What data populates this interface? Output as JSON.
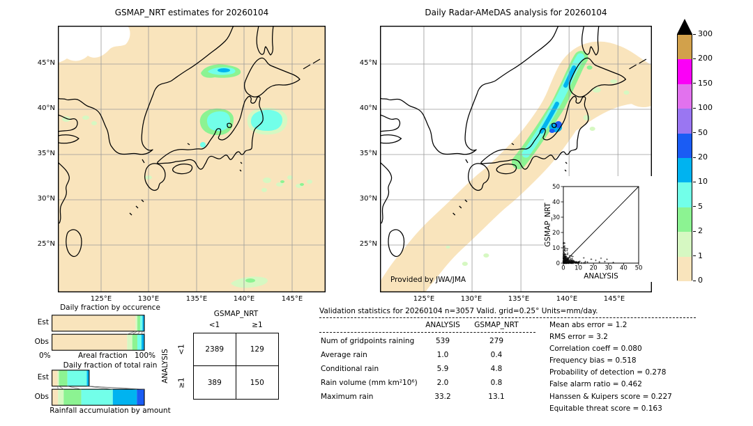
{
  "palette": {
    "wheat": "#f9e4bc",
    "pale_green": "#d6f8c2",
    "green": "#8cf392",
    "cyan": "#72ffe9",
    "sky_blue": "#00b3f0",
    "blue": "#1a5cf4",
    "purple": "#9a76f2",
    "orchid": "#e272ee",
    "magenta": "#fb00f7",
    "tan": "#d2a14b",
    "overflow": "#000000",
    "no_data": "#ffffff",
    "gridline": "#9a9a9a"
  },
  "left_map": {
    "title": "GSMAP_NRT estimates for 20260104",
    "lat_labels": [
      "45°N",
      "40°N",
      "35°N",
      "30°N",
      "25°N"
    ],
    "lon_labels": [
      "125°E",
      "130°E",
      "135°E",
      "140°E",
      "145°E"
    ]
  },
  "right_map": {
    "title": "Daily Radar-AMeDAS analysis for 20260104",
    "lat_labels": [
      "45°N",
      "40°N",
      "35°N",
      "30°N",
      "25°N"
    ],
    "lon_labels": [
      "125°E",
      "130°E",
      "135°E",
      "140°E",
      "145°E"
    ],
    "credit": "Provided by JWA/JMA"
  },
  "chart_data": [
    {
      "type": "bar",
      "name": "daily_fraction_by_occurence",
      "stacked": true,
      "orientation": "horizontal",
      "title": "Daily fraction by occurence",
      "categories": [
        "Est",
        "Obs"
      ],
      "xlabel": "Areal fraction",
      "x_tick_labels": [
        "0%",
        "100%"
      ],
      "xlim_pct": [
        0,
        100
      ],
      "series": [
        {
          "name": "0-1 mm/day",
          "color": "#f9e4bc",
          "values": [
            90.5,
            81.5
          ]
        },
        {
          "name": "1-2 mm/day",
          "color": "#d6f8c2",
          "values": [
            2.0,
            5.5
          ]
        },
        {
          "name": "2-5 mm/day",
          "color": "#8cf392",
          "values": [
            3.0,
            5.5
          ]
        },
        {
          "name": "5-10 mm/day",
          "color": "#72ffe9",
          "values": [
            2.5,
            4.5
          ]
        },
        {
          "name": "10-20 mm/day",
          "color": "#00b3f0",
          "values": [
            2.0,
            3.0
          ]
        }
      ]
    },
    {
      "type": "bar",
      "name": "daily_fraction_of_total_rain",
      "stacked": true,
      "orientation": "horizontal",
      "title": "Daily fraction of total rain",
      "footer": "Rainfall accumulation by amount",
      "categories": [
        "Est",
        "Obs"
      ],
      "xlim_pct": [
        0,
        100
      ],
      "series": [
        {
          "name": "0-1 mm/day",
          "color": "#f9e4bc",
          "values": [
            6.5,
            7.0
          ]
        },
        {
          "name": "1-2 mm/day",
          "color": "#d6f8c2",
          "values": [
            1.5,
            6.0
          ]
        },
        {
          "name": "2-5 mm/day",
          "color": "#8cf392",
          "values": [
            9.0,
            19.0
          ]
        },
        {
          "name": "5-10 mm/day",
          "color": "#72ffe9",
          "values": [
            21.0,
            34.0
          ]
        },
        {
          "name": "10-20 mm/day",
          "color": "#00b3f0",
          "values": [
            2.5,
            26.0
          ]
        },
        {
          "name": "20-50 mm/day",
          "color": "#1a5cf4",
          "values": [
            0.0,
            8.0
          ]
        }
      ]
    },
    {
      "type": "table",
      "name": "contingency_table",
      "col_group": "GSMAP_NRT",
      "row_group": "ANALYSIS",
      "col_labels": [
        "<1",
        "≥1"
      ],
      "row_labels": [
        "<1",
        "≥1"
      ],
      "values": [
        [
          "2389",
          "129"
        ],
        [
          "389",
          "150"
        ]
      ]
    },
    {
      "type": "table",
      "name": "validation_statistics",
      "title": "Validation statistics for 20260104  n=3057 Valid. grid=0.25° Units=mm/day.",
      "columns": [
        "ANALYSIS",
        "GSMAP_NRT"
      ],
      "rows": [
        {
          "label": "Num of gridpoints raining",
          "values": [
            "539",
            "279"
          ]
        },
        {
          "label": "Average rain",
          "values": [
            "1.0",
            "0.4"
          ]
        },
        {
          "label": "Conditional rain",
          "values": [
            "5.9",
            "4.8"
          ]
        },
        {
          "label": "Rain volume (mm km²10⁶)",
          "values": [
            "2.0",
            "0.8"
          ]
        },
        {
          "label": "Maximum rain",
          "values": [
            "33.2",
            "13.1"
          ]
        }
      ]
    },
    {
      "type": "list",
      "name": "skill_scores",
      "items": [
        {
          "label": "Mean abs error",
          "value": "1.2"
        },
        {
          "label": "RMS error",
          "value": "3.2"
        },
        {
          "label": "Correlation coeff",
          "value": "0.080"
        },
        {
          "label": "Frequency bias",
          "value": "0.518"
        },
        {
          "label": "Probability of detection",
          "value": "0.278"
        },
        {
          "label": "False alarm ratio",
          "value": "0.462"
        },
        {
          "label": "Hanssen & Kuipers score",
          "value": "0.227"
        },
        {
          "label": "Equitable threat score",
          "value": "0.163"
        }
      ]
    },
    {
      "type": "scatter",
      "name": "inset_scatter",
      "xlabel": "ANALYSIS",
      "ylabel": "GSMAP_NRT",
      "xlim": [
        0,
        50
      ],
      "ylim": [
        0,
        50
      ],
      "tick_labels": [
        "0",
        "10",
        "20",
        "30",
        "40",
        "50"
      ],
      "diagonal": true,
      "x_max_point": 33.2,
      "y_max_point": 13.1,
      "description": "Dense cluster of + markers hugging both axes near the origin; outliers along the ANALYSIS axis up to ~33 with GSMAP_NRT below ~13."
    },
    {
      "type": "colorbar",
      "name": "rain_scale",
      "units": "mm/day",
      "levels_top_to_bottom": [
        "300",
        "200",
        "150",
        "100",
        "50",
        "20",
        "10",
        "5",
        "2",
        "1",
        "0"
      ],
      "colors_top_to_bottom": [
        "#d2a14b",
        "#fb00f7",
        "#e272ee",
        "#9a76f2",
        "#1a5cf4",
        "#00b3f0",
        "#72ffe9",
        "#8cf392",
        "#d6f8c2",
        "#f9e4bc"
      ],
      "overflow_color": "#000000"
    }
  ]
}
